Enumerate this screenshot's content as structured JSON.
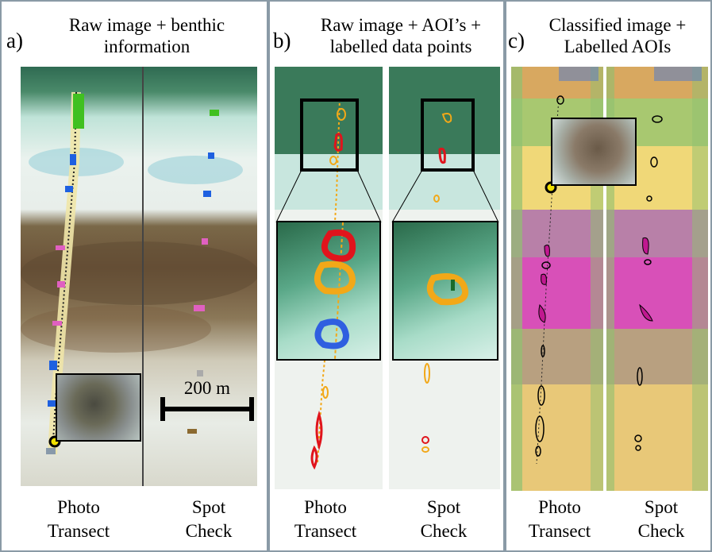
{
  "panel_a": {
    "letter": "a)",
    "title_line1": "Raw image + benthic",
    "title_line2": "information",
    "left_caption_line1": "Photo",
    "left_caption_line2": "Transect",
    "right_caption_line1": "Spot",
    "right_caption_line2": "Check",
    "scale_bar": "200 m"
  },
  "panel_b": {
    "letter": "b)",
    "title_line1": "Raw image + AOI’s +",
    "title_line2": "labelled data points",
    "left_caption_line1": "Photo",
    "left_caption_line2": "Transect",
    "right_caption_line1": "Spot",
    "right_caption_line2": "Check"
  },
  "panel_c": {
    "letter": "c)",
    "title_line1": "Classified image +",
    "title_line2": "Labelled AOIs",
    "left_caption_line1": "Photo",
    "left_caption_line2": "Transect",
    "right_caption_line1": "Spot",
    "right_caption_line2": "Check"
  },
  "colors": {
    "border": "#8a9aa6",
    "aoi_red": "#e0141c",
    "aoi_orange": "#f2a818",
    "aoi_blue": "#2f5fe0",
    "class_magenta": "#e040c8",
    "class_yellow": "#f0d070",
    "class_green": "#70c060"
  }
}
